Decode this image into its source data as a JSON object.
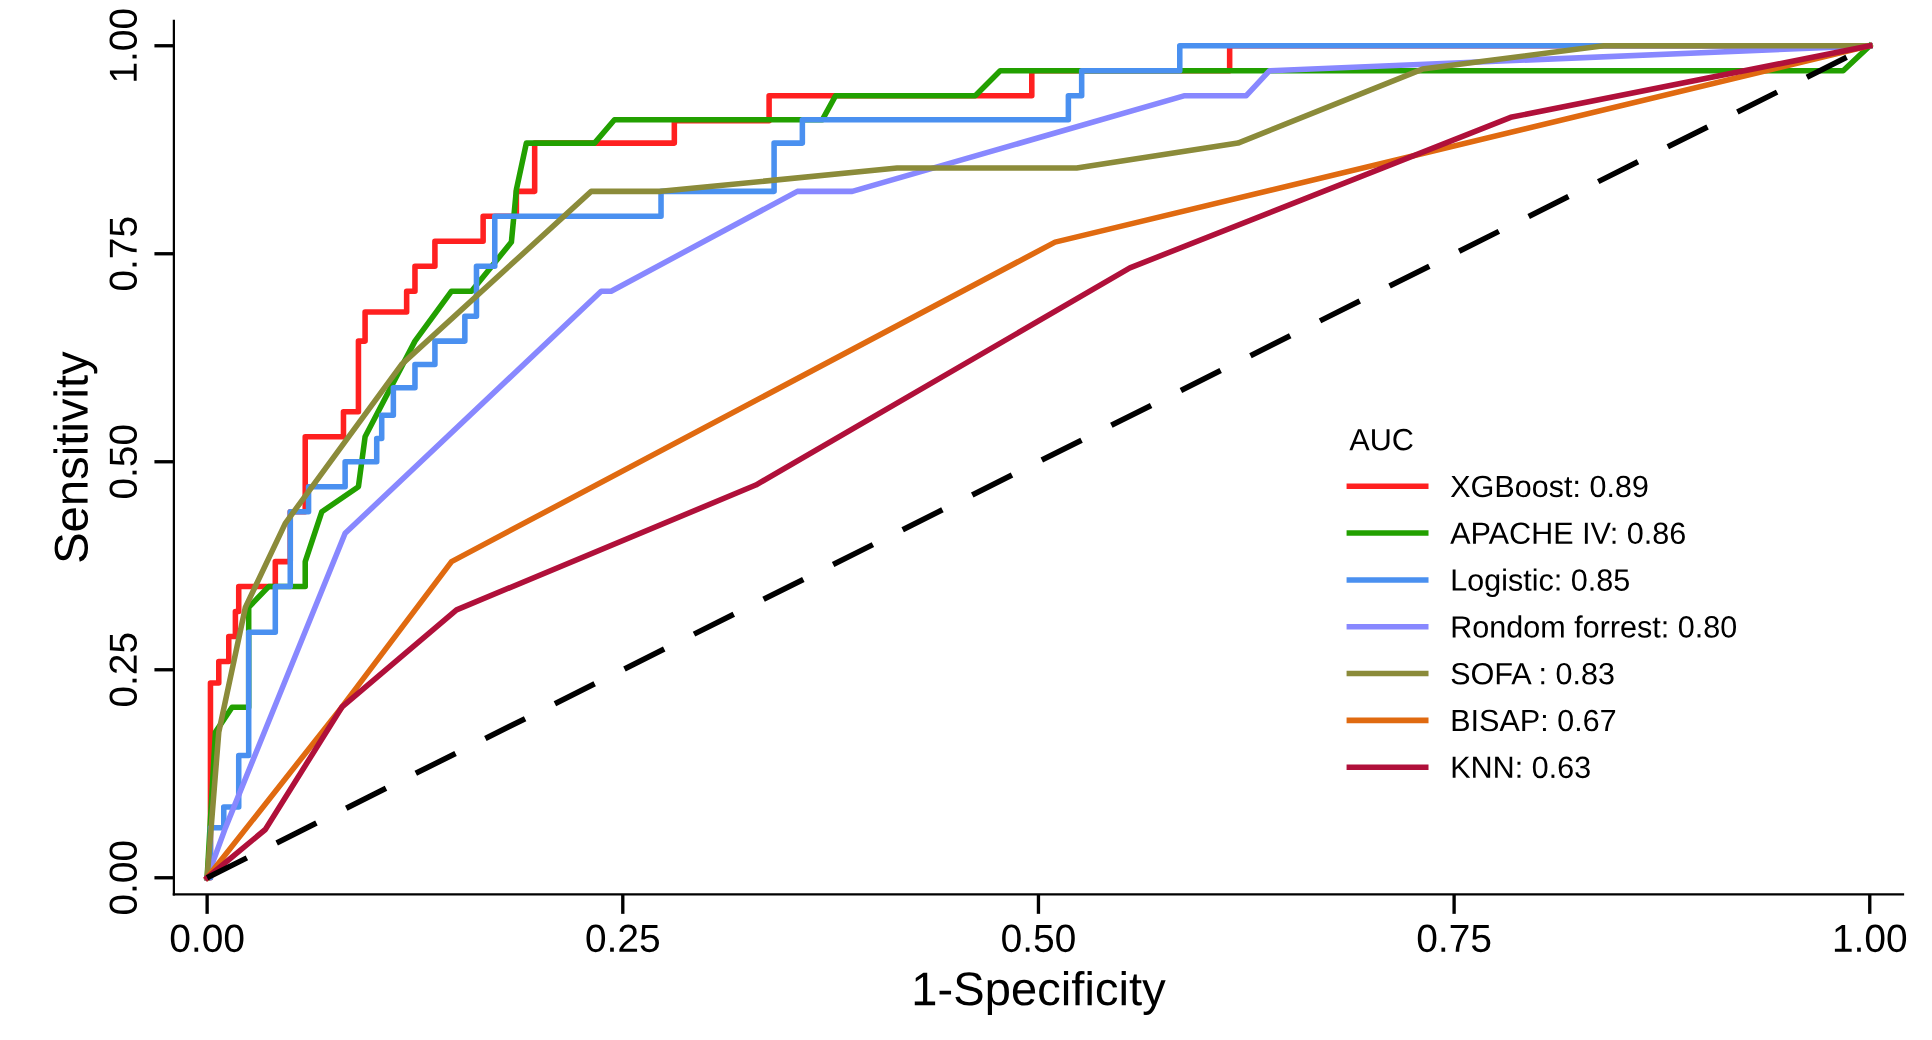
{
  "chart_data": {
    "type": "line",
    "xlabel": "1-Specificity",
    "ylabel": "Sensitivity",
    "legend_title": "AUC",
    "legend": "center right",
    "grid": false,
    "xlim": [
      -0.02,
      1.02
    ],
    "ylim": [
      -0.02,
      1.03
    ],
    "xticks": [
      {
        "value": 0,
        "label": "0.00"
      },
      0.25,
      {
        "value": 0.5,
        "label": "0.50"
      },
      0.75,
      {
        "value": 1,
        "label": "1.00"
      }
    ],
    "yticks": [
      {
        "value": 0,
        "label": "0.00"
      },
      0.25,
      {
        "value": 0.5,
        "label": "0.50"
      },
      0.75,
      {
        "value": 1,
        "label": "1.00"
      }
    ],
    "series": [
      {
        "name": "XGBoost: 0.89",
        "color": "#ff2020",
        "type": "step",
        "x": [
          0,
          0.002,
          0.002,
          0.007,
          0.007,
          0.013,
          0.013,
          0.017,
          0.017,
          0.019,
          0.019,
          0.041,
          0.041,
          0.05,
          0.05,
          0.059,
          0.059,
          0.082,
          0.082,
          0.091,
          0.091,
          0.095,
          0.095,
          0.12,
          0.12,
          0.125,
          0.125,
          0.137,
          0.137,
          0.166,
          0.166,
          0.186,
          0.186,
          0.197,
          0.197,
          0.281,
          0.281,
          0.338,
          0.338,
          0.496,
          0.496,
          0.615,
          0.615,
          1.0
        ],
        "values": [
          0,
          0,
          0.234,
          0.234,
          0.26,
          0.26,
          0.29,
          0.29,
          0.32,
          0.32,
          0.35,
          0.35,
          0.38,
          0.38,
          0.44,
          0.44,
          0.53,
          0.53,
          0.56,
          0.56,
          0.645,
          0.645,
          0.68,
          0.68,
          0.705,
          0.705,
          0.735,
          0.735,
          0.765,
          0.765,
          0.795,
          0.795,
          0.825,
          0.825,
          0.883,
          0.883,
          0.91,
          0.91,
          0.94,
          0.94,
          0.97,
          0.97,
          1.0,
          1.0
        ]
      },
      {
        "name": "APACHE IV: 0.86",
        "color": "#22a000",
        "x": [
          0,
          0.005,
          0.015,
          0.025,
          0.025,
          0.037,
          0.059,
          0.059,
          0.069,
          0.091,
          0.095,
          0.125,
          0.147,
          0.159,
          0.183,
          0.186,
          0.192,
          0.233,
          0.245,
          0.37,
          0.378,
          0.462,
          0.477,
          0.984,
          1.0
        ],
        "values": [
          0,
          0.175,
          0.205,
          0.205,
          0.325,
          0.35,
          0.35,
          0.38,
          0.44,
          0.47,
          0.53,
          0.645,
          0.705,
          0.705,
          0.764,
          0.827,
          0.883,
          0.883,
          0.911,
          0.911,
          0.94,
          0.94,
          0.97,
          0.97,
          1.0
        ]
      },
      {
        "name": "Logistic: 0.85",
        "color": "#4a90f0",
        "type": "step",
        "x": [
          0,
          0.002,
          0.002,
          0.01,
          0.01,
          0.019,
          0.019,
          0.025,
          0.025,
          0.041,
          0.041,
          0.05,
          0.05,
          0.061,
          0.061,
          0.083,
          0.083,
          0.102,
          0.102,
          0.105,
          0.105,
          0.112,
          0.112,
          0.125,
          0.125,
          0.137,
          0.137,
          0.155,
          0.155,
          0.162,
          0.162,
          0.173,
          0.173,
          0.273,
          0.273,
          0.341,
          0.341,
          0.358,
          0.358,
          0.518,
          0.518,
          0.526,
          0.526,
          0.585,
          0.585,
          1.0
        ],
        "values": [
          0,
          0,
          0.06,
          0.06,
          0.085,
          0.085,
          0.147,
          0.147,
          0.295,
          0.295,
          0.35,
          0.35,
          0.44,
          0.44,
          0.47,
          0.47,
          0.5,
          0.5,
          0.528,
          0.528,
          0.556,
          0.556,
          0.589,
          0.589,
          0.617,
          0.617,
          0.645,
          0.645,
          0.675,
          0.675,
          0.735,
          0.735,
          0.795,
          0.795,
          0.825,
          0.825,
          0.883,
          0.883,
          0.911,
          0.911,
          0.94,
          0.94,
          0.97,
          0.97,
          1.0,
          1.0
        ]
      },
      {
        "name": "Rondom forrest: 0.80",
        "color": "#8888ff",
        "x": [
          0,
          0.011,
          0.083,
          0.237,
          0.243,
          0.355,
          0.388,
          0.588,
          0.625,
          0.639,
          1.0
        ],
        "values": [
          0,
          0.06,
          0.414,
          0.705,
          0.705,
          0.825,
          0.825,
          0.94,
          0.94,
          0.97,
          1.0
        ]
      },
      {
        "name": "SOFA : 0.83",
        "color": "#8b8b3a",
        "x": [
          0,
          0.007,
          0.023,
          0.047,
          0.117,
          0.231,
          0.273,
          0.415,
          0.523,
          0.62,
          0.731,
          0.84,
          1.0
        ],
        "values": [
          0,
          0.175,
          0.325,
          0.426,
          0.617,
          0.825,
          0.825,
          0.853,
          0.853,
          0.883,
          0.972,
          1.0,
          1.0
        ]
      },
      {
        "name": "BISAP: 0.67",
        "color": "#e06a10",
        "x": [
          0,
          0.081,
          0.147,
          0.51,
          1.0
        ],
        "values": [
          0,
          0.205,
          0.38,
          0.764,
          1.0
        ]
      },
      {
        "name": "KNN: 0.63",
        "color": "#b0103a",
        "x": [
          0,
          0.035,
          0.081,
          0.15,
          0.33,
          0.555,
          0.784,
          1.0
        ],
        "values": [
          0,
          0.058,
          0.205,
          0.322,
          0.472,
          0.733,
          0.914,
          1.0
        ]
      },
      {
        "color": "#000000",
        "line_style": "dashed",
        "x": [
          0,
          1
        ],
        "values": [
          0,
          1
        ]
      }
    ]
  }
}
